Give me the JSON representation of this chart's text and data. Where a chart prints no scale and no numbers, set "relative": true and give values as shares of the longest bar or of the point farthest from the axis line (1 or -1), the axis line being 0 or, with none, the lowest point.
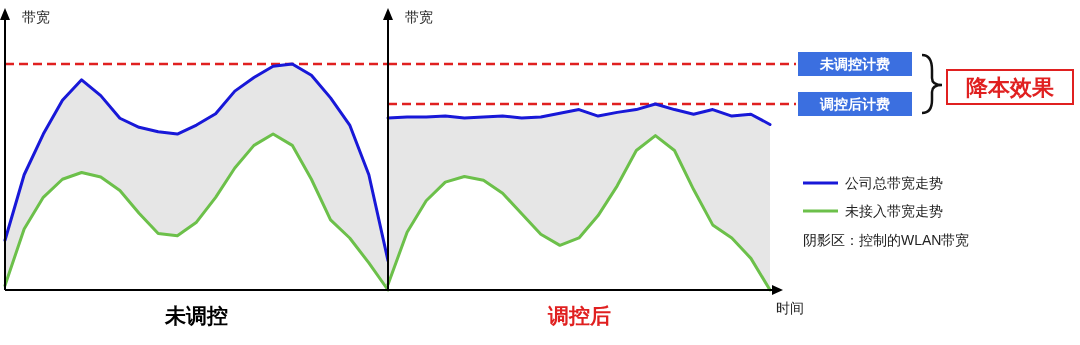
{
  "chart_data": [
    {
      "type": "line",
      "relative": true,
      "ylabel": "带宽",
      "xlabel": "未调控",
      "categories": [
        null,
        null,
        null,
        null,
        null,
        null,
        null,
        null,
        null,
        null,
        null,
        null,
        null,
        null,
        null,
        null,
        null,
        null,
        null,
        null,
        null
      ],
      "series": [
        {
          "color": "#1818d8",
          "values": [
            0.22,
            0.51,
            0.69,
            0.84,
            0.93,
            0.86,
            0.76,
            0.72,
            0.7,
            0.69,
            0.73,
            0.78,
            0.88,
            0.94,
            0.99,
            1.0,
            0.95,
            0.85,
            0.73,
            0.51,
            0.13
          ],
          "lower": [
            0.02,
            0.27,
            0.41,
            0.49,
            0.52,
            0.5,
            0.44,
            0.34,
            0.25,
            0.24,
            0.3,
            0.41,
            0.54,
            0.64,
            0.69,
            0.64,
            0.49,
            0.31,
            0.23,
            0.12,
            0
          ],
          "upper": [
            0.22,
            0.51,
            0.69,
            0.84,
            0.93,
            0.86,
            0.76,
            0.72,
            0.7,
            0.69,
            0.73,
            0.78,
            0.88,
            0.94,
            0.99,
            1.0,
            0.95,
            0.85,
            0.73,
            0.51,
            0.13
          ]
        },
        {
          "color": "#6cc04a",
          "values": [
            0.02,
            0.27,
            0.41,
            0.49,
            0.52,
            0.5,
            0.44,
            0.34,
            0.25,
            0.24,
            0.3,
            0.41,
            0.54,
            0.64,
            0.69,
            0.64,
            0.49,
            0.31,
            0.23,
            0.12,
            0
          ]
        }
      ],
      "ref_lines": [
        {
          "axis": "y",
          "value": 1,
          "color": "#e02020",
          "line_style": "dashed"
        }
      ]
    },
    {
      "type": "line",
      "relative": true,
      "ylabel": "带宽",
      "xlabel": "调控后",
      "legend": "right",
      "categories": [
        null,
        null,
        null,
        null,
        null,
        null,
        null,
        null,
        null,
        null,
        null,
        null,
        null,
        null,
        null,
        null,
        null,
        null,
        null,
        null,
        null
      ],
      "series": [
        {
          "name": "公司总带宽走势",
          "color": "#1818d8",
          "values": [
            0.925,
            0.93,
            0.93,
            0.935,
            0.925,
            0.93,
            0.935,
            0.925,
            0.93,
            0.95,
            0.97,
            0.935,
            0.955,
            0.97,
            1.0,
            0.97,
            0.945,
            0.97,
            0.935,
            0.945,
            0.89
          ],
          "lower": [
            0.03,
            0.31,
            0.48,
            0.58,
            0.61,
            0.59,
            0.52,
            0.41,
            0.3,
            0.24,
            0.28,
            0.4,
            0.56,
            0.75,
            0.83,
            0.75,
            0.54,
            0.35,
            0.28,
            0.17,
            0
          ],
          "upper": [
            0.925,
            0.93,
            0.93,
            0.935,
            0.925,
            0.93,
            0.935,
            0.925,
            0.93,
            0.95,
            0.97,
            0.935,
            0.955,
            0.97,
            1.0,
            0.97,
            0.945,
            0.97,
            0.935,
            0.945,
            0.89
          ]
        },
        {
          "name": "未接入带宽走势",
          "color": "#6cc04a",
          "values": [
            0.03,
            0.31,
            0.48,
            0.58,
            0.61,
            0.59,
            0.52,
            0.41,
            0.3,
            0.24,
            0.28,
            0.4,
            0.56,
            0.75,
            0.83,
            0.75,
            0.54,
            0.35,
            0.28,
            0.17,
            0
          ]
        }
      ],
      "ref_lines": [
        {
          "axis": "y",
          "value": 1.215,
          "label": "未调控计费",
          "color": "#e02020",
          "line_style": "dashed"
        },
        {
          "axis": "y",
          "value": 1,
          "label": "调控后计费",
          "color": "#e02020",
          "line_style": "dashed"
        }
      ],
      "annotations": [
        "时间",
        "降本效果",
        "阴影区：控制的WLAN带宽"
      ]
    }
  ]
}
